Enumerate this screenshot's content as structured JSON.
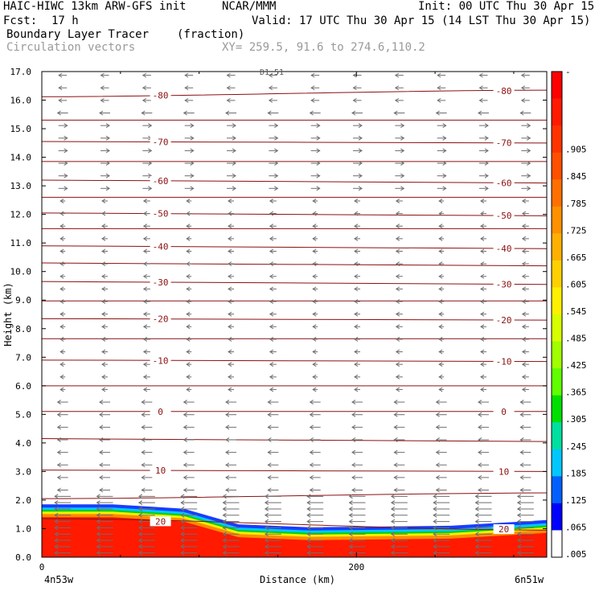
{
  "header": {
    "model": "HAIC-HIWC 13km ARW-GFS init",
    "org": "NCAR/MMM",
    "init": "Init: 00 UTC Thu 30 Apr 15",
    "fcst_label": "Fcst:",
    "fcst_value": "17 h",
    "valid": "Valid: 17 UTC Thu 30 Apr 15 (14 LST Thu 30 Apr 15)",
    "field_name": "Boundary Layer Tracer",
    "field_units": "(fraction)",
    "vector_label": "Circulation vectors",
    "xy_label": "XY= 259.5, 91.6 to 274.6,110.2"
  },
  "chart_data": {
    "type": "heatmap",
    "ylabel": "Height (km)",
    "xlabel": "Distance (km)",
    "y_range": [
      0,
      17
    ],
    "x_range": [
      0,
      321
    ],
    "y_ticks": [
      "0.0",
      "1.0",
      "2.0",
      "3.0",
      "4.0",
      "5.0",
      "6.0",
      "7.0",
      "8.0",
      "9.0",
      "10.0",
      "11.0",
      "12.0",
      "13.0",
      "14.0",
      "15.0",
      "16.0",
      "17.0"
    ],
    "x_ticks": [
      {
        "value": 0,
        "label": "0"
      },
      {
        "value": 200,
        "label": "200"
      }
    ],
    "x_end_labels": {
      "left": "4n53w",
      "right": "6n51w"
    },
    "top_marker": "D1.51",
    "isotherms": [
      {
        "label": "-80",
        "y": [
          16.12,
          16.35
        ]
      },
      {
        "label": "",
        "y": [
          15.3,
          15.3
        ]
      },
      {
        "label": "-70",
        "y": [
          14.55,
          14.5
        ]
      },
      {
        "label": "",
        "y": [
          13.85,
          13.85
        ]
      },
      {
        "label": "-60",
        "y": [
          13.2,
          13.1
        ]
      },
      {
        "label": "",
        "y": [
          12.6,
          12.6
        ]
      },
      {
        "label": "-50",
        "y": [
          12.05,
          11.95
        ]
      },
      {
        "label": "",
        "y": [
          11.5,
          11.5
        ]
      },
      {
        "label": "-40",
        "y": [
          10.9,
          10.8
        ]
      },
      {
        "label": "",
        "y": [
          10.3,
          10.2
        ]
      },
      {
        "label": "-30",
        "y": [
          9.65,
          9.55
        ]
      },
      {
        "label": "",
        "y": [
          8.97,
          8.97
        ]
      },
      {
        "label": "-20",
        "y": [
          8.35,
          8.3
        ]
      },
      {
        "label": "",
        "y": [
          7.65,
          7.65
        ]
      },
      {
        "label": "-10",
        "y": [
          6.9,
          6.85
        ]
      },
      {
        "label": "",
        "y": [
          6.0,
          6.0
        ]
      },
      {
        "label": "0",
        "y": [
          5.1,
          5.1
        ]
      },
      {
        "label": "",
        "y": [
          4.15,
          4.05
        ]
      },
      {
        "label": "10",
        "y": [
          3.05,
          3.0
        ]
      },
      {
        "label": "",
        "y": [
          2.05,
          2.25
        ]
      },
      {
        "label": "20",
        "y": [
          1.35,
          0.95
        ]
      }
    ],
    "tracer_top": [
      [
        0,
        1.85
      ],
      [
        45,
        1.85
      ],
      [
        90,
        1.7
      ],
      [
        125,
        1.15
      ],
      [
        170,
        1.05
      ],
      [
        260,
        1.1
      ],
      [
        321,
        1.3
      ]
    ],
    "colorbar": {
      "labels": [
        "-",
        ".905",
        ".845",
        ".785",
        ".725",
        ".665",
        ".605",
        ".545",
        ".485",
        ".425",
        ".365",
        ".305",
        ".245",
        ".185",
        ".125",
        ".065",
        ".005"
      ],
      "colors": [
        "#ff0000",
        "#ff1a00",
        "#ff3300",
        "#ff5000",
        "#ff7000",
        "#ff9000",
        "#ffb000",
        "#ffd000",
        "#fff000",
        "#d8ff00",
        "#a0ff00",
        "#60ff00",
        "#00e000",
        "#00e0a0",
        "#00c8ff",
        "#0060ff",
        "#0000ff",
        "#ffffff"
      ]
    }
  }
}
